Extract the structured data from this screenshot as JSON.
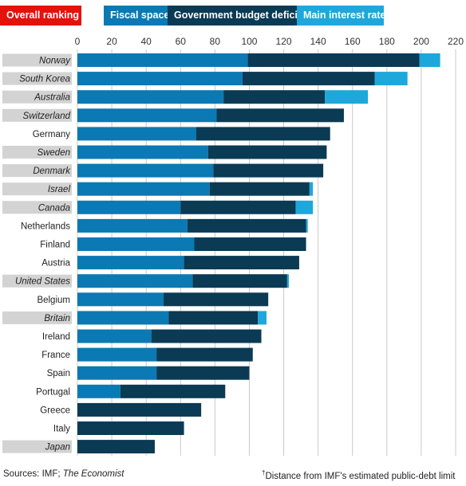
{
  "legend": {
    "overall_label": "Overall ranking",
    "fiscal_label": "Fiscal space",
    "fiscal_mark": "†",
    "deficit_label": "Government budget deficit",
    "interest_label": "Main interest rate"
  },
  "colors": {
    "overall": "#e3120b",
    "fiscal": "#0b79b3",
    "deficit": "#0a3a54",
    "interest": "#1ea7db",
    "grid": "#c9c9c9",
    "label_bg": "#d3d3d3"
  },
  "footer": {
    "sources_prefix": "Sources: IMF; ",
    "sources_italic": "The Economist",
    "note_mark": "†",
    "note": "Distance from IMF's estimated public-debt limit"
  },
  "chart_data": {
    "type": "bar",
    "orientation": "horizontal",
    "stacked": true,
    "xlim": [
      0,
      220
    ],
    "ticks": [
      0,
      20,
      40,
      60,
      80,
      100,
      120,
      140,
      160,
      180,
      200,
      220
    ],
    "grid": true,
    "categories": [
      {
        "name": "Norway",
        "italic": true
      },
      {
        "name": "South Korea",
        "italic": true
      },
      {
        "name": "Australia",
        "italic": true
      },
      {
        "name": "Switzerland",
        "italic": true
      },
      {
        "name": "Germany",
        "italic": false
      },
      {
        "name": "Sweden",
        "italic": true
      },
      {
        "name": "Denmark",
        "italic": true
      },
      {
        "name": "Israel",
        "italic": true
      },
      {
        "name": "Canada",
        "italic": true
      },
      {
        "name": "Netherlands",
        "italic": false
      },
      {
        "name": "Finland",
        "italic": false
      },
      {
        "name": "Austria",
        "italic": false
      },
      {
        "name": "United States",
        "italic": true
      },
      {
        "name": "Belgium",
        "italic": false
      },
      {
        "name": "Britain",
        "italic": true
      },
      {
        "name": "Ireland",
        "italic": false
      },
      {
        "name": "France",
        "italic": false
      },
      {
        "name": "Spain",
        "italic": false
      },
      {
        "name": "Portugal",
        "italic": false
      },
      {
        "name": "Greece",
        "italic": false
      },
      {
        "name": "Italy",
        "italic": false
      },
      {
        "name": "Japan",
        "italic": true
      }
    ],
    "series": [
      {
        "name": "Fiscal space",
        "color_key": "fiscal",
        "values": [
          99,
          96,
          85,
          81,
          69,
          76,
          79,
          77,
          60,
          64,
          68,
          62,
          67,
          50,
          53,
          43,
          46,
          46,
          25,
          0,
          0,
          0
        ]
      },
      {
        "name": "Government budget deficit",
        "color_key": "deficit",
        "values": [
          100,
          77,
          59,
          74,
          78,
          69,
          64,
          58,
          67,
          69,
          65,
          67,
          55,
          61,
          52,
          64,
          56,
          54,
          61,
          72,
          62,
          45
        ]
      },
      {
        "name": "Main interest rate",
        "color_key": "interest",
        "values": [
          12,
          19,
          25,
          0,
          0,
          0,
          0,
          2,
          10,
          1,
          0,
          0,
          1,
          0,
          5,
          0,
          0,
          0,
          0,
          0,
          0,
          0
        ]
      }
    ]
  }
}
